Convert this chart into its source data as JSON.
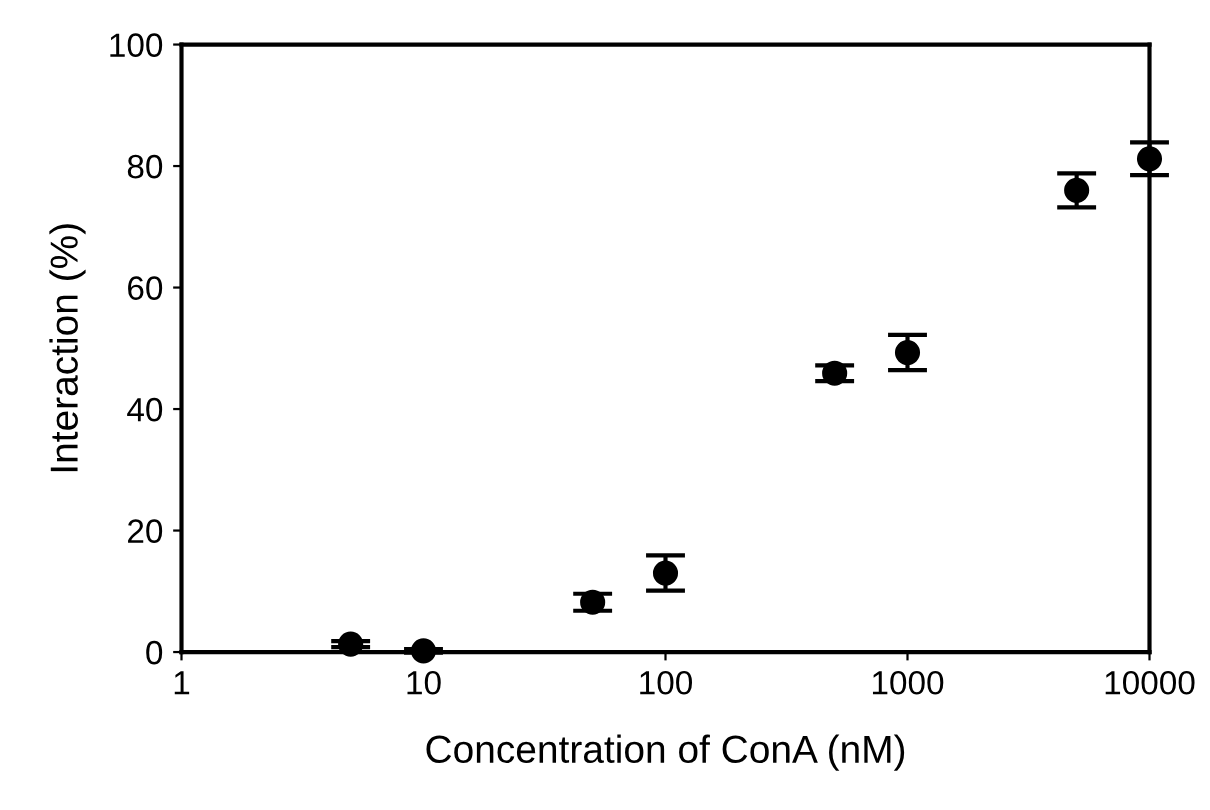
{
  "chart_data": {
    "type": "scatter",
    "xlabel": "Concentration of ConA (nM)",
    "ylabel": "Interaction (%)",
    "x": [
      5,
      10,
      50,
      100,
      500,
      1000,
      5000,
      10000
    ],
    "values": [
      1.3,
      0.2,
      8.2,
      13.0,
      45.9,
      49.3,
      76.0,
      81.2
    ],
    "errors": [
      0.5,
      0.3,
      1.4,
      2.9,
      1.3,
      2.9,
      2.8,
      2.7
    ],
    "color": "#000000",
    "marker": "circle",
    "log": "x",
    "xlim": [
      1,
      10000
    ],
    "xticks": [
      1,
      10,
      100,
      1000,
      10000
    ],
    "ylim": [
      0,
      100
    ],
    "yticks": [
      0,
      20,
      40,
      60,
      80,
      100
    ],
    "grid": false
  }
}
